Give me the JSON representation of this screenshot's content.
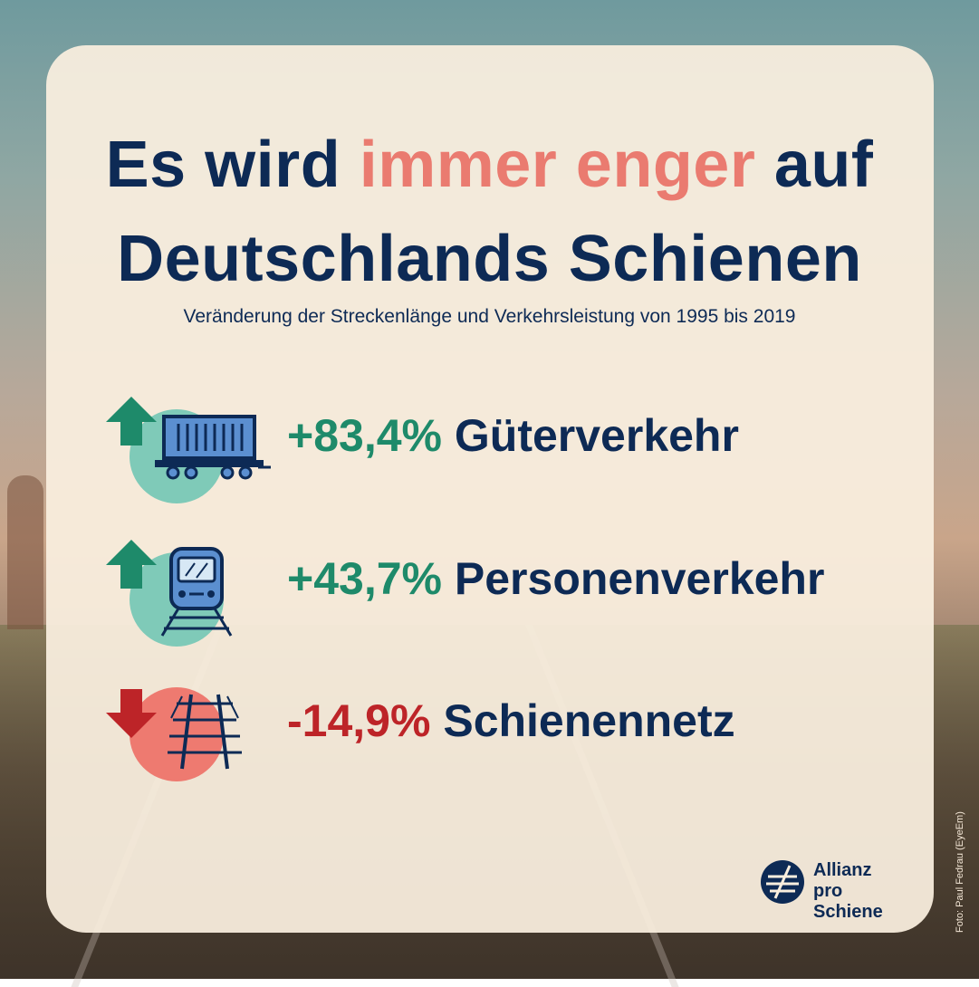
{
  "title": {
    "line1_a": "Es wird",
    "line1_highlight": "immer enger",
    "line1_b": "auf",
    "line2": "Deutschlands Schienen"
  },
  "subtitle": "Veränderung der Streckenlänge und Verkehrsleistung von 1995 bis 2019",
  "stats": [
    {
      "value": "+83,4%",
      "label": "Güterverkehr",
      "direction": "up",
      "icon": "freight-wagon-icon"
    },
    {
      "value": "+43,7%",
      "label": "Personenverkehr",
      "direction": "up",
      "icon": "passenger-train-icon"
    },
    {
      "value": "-14,9%",
      "label": "Schienennetz",
      "direction": "down",
      "icon": "rail-track-icon"
    }
  ],
  "logo": {
    "line1": "Allianz",
    "line2": "pro Schiene"
  },
  "photo_credit": "Foto: Paul Fedrau (EyeEm)",
  "colors": {
    "navy": "#0d2a55",
    "highlight": "#ea7b70",
    "up_green": "#1e8a6a",
    "up_circle": "#7fcab8",
    "down_red": "#bd2428",
    "down_circle": "#ee7a70",
    "card": "#f9eede"
  }
}
